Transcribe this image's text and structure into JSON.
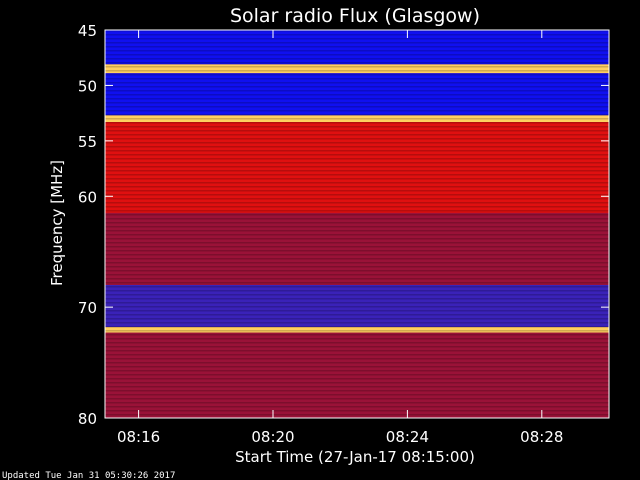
{
  "chart_data": {
    "type": "heatmap",
    "title": "Solar radio Flux (Glasgow)",
    "ylabel": "Frequency [MHz]",
    "xlabel": "Start Time (27-Jan-17 08:15:00)",
    "ylim": [
      45,
      80
    ],
    "y_axis_inverted": true,
    "xlim": [
      "08:15:00",
      "08:30:00"
    ],
    "x_ticks": [
      "08:16",
      "08:20",
      "08:24",
      "08:28"
    ],
    "y_ticks": [
      45,
      50,
      55,
      60,
      70,
      80
    ],
    "bands": [
      {
        "from": 45,
        "to": 48.1,
        "level": "low"
      },
      {
        "from": 48.1,
        "to": 48.9,
        "level": "very-high"
      },
      {
        "from": 48.9,
        "to": 52.7,
        "level": "low"
      },
      {
        "from": 52.7,
        "to": 53.3,
        "level": "very-high"
      },
      {
        "from": 53.3,
        "to": 61.5,
        "level": "high"
      },
      {
        "from": 61.5,
        "to": 68.0,
        "level": "medium"
      },
      {
        "from": 68.0,
        "to": 71.8,
        "level": "medium-low"
      },
      {
        "from": 71.8,
        "to": 72.3,
        "level": "very-high"
      },
      {
        "from": 72.3,
        "to": 80,
        "level": "medium"
      }
    ],
    "colors": {
      "low": "#1010f0",
      "medium-low": "#3a22b8",
      "medium": "#9a1238",
      "high": "#e01010",
      "very-high": "#ffd060"
    }
  },
  "footer": {
    "updated": "Updated Tue Jan 31 05:30:26 2017"
  }
}
